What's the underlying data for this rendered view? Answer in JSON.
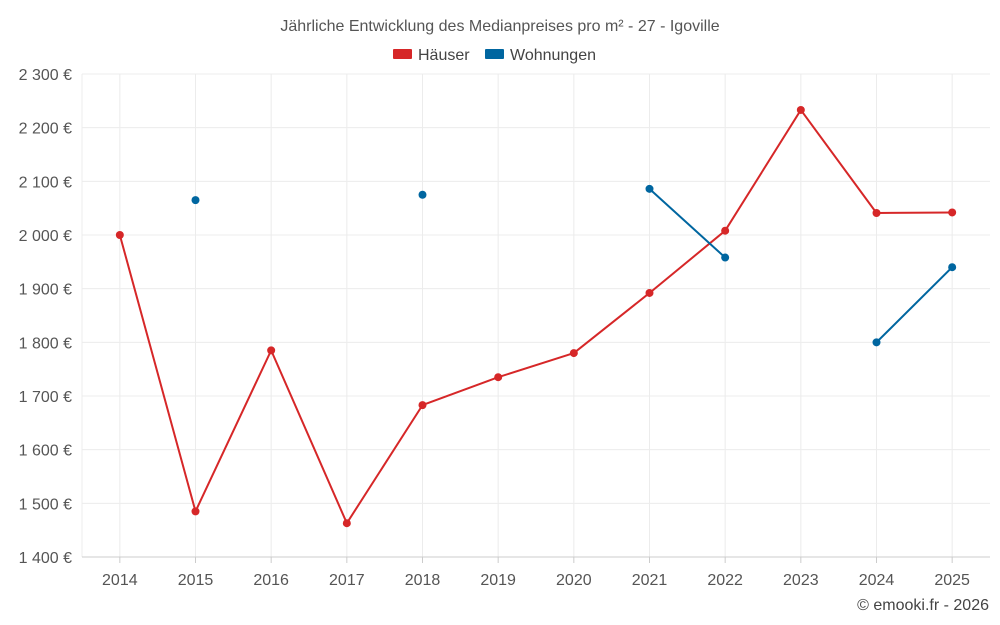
{
  "chart_data": {
    "type": "line",
    "title": "Jährliche Entwicklung des Medianpreises pro m² - 27 - Igoville",
    "categories": [
      "2014",
      "2015",
      "2016",
      "2017",
      "2018",
      "2019",
      "2020",
      "2021",
      "2022",
      "2023",
      "2024",
      "2025"
    ],
    "y_ticks": [
      1400,
      1500,
      1600,
      1700,
      1800,
      1900,
      2000,
      2100,
      2200,
      2300
    ],
    "y_tick_labels": [
      "1 400 €",
      "1 500 €",
      "1 600 €",
      "1 700 €",
      "1 800 €",
      "1 900 €",
      "2 000 €",
      "2 100 €",
      "2 200 €",
      "2 300 €"
    ],
    "ylim": [
      1400,
      2300
    ],
    "grid": true,
    "legend_position": "top-center",
    "series": [
      {
        "name": "Häuser",
        "color": "#d62728",
        "values": [
          2000,
          1485,
          1785,
          1463,
          1683,
          1735,
          1780,
          1892,
          2008,
          2233,
          2041,
          2042
        ]
      },
      {
        "name": "Wohnungen",
        "color": "#0066a0",
        "values": [
          null,
          2065,
          null,
          null,
          2075,
          null,
          null,
          2086,
          1958,
          null,
          1800,
          1940
        ]
      }
    ],
    "credit": "© emooki.fr - 2026"
  }
}
